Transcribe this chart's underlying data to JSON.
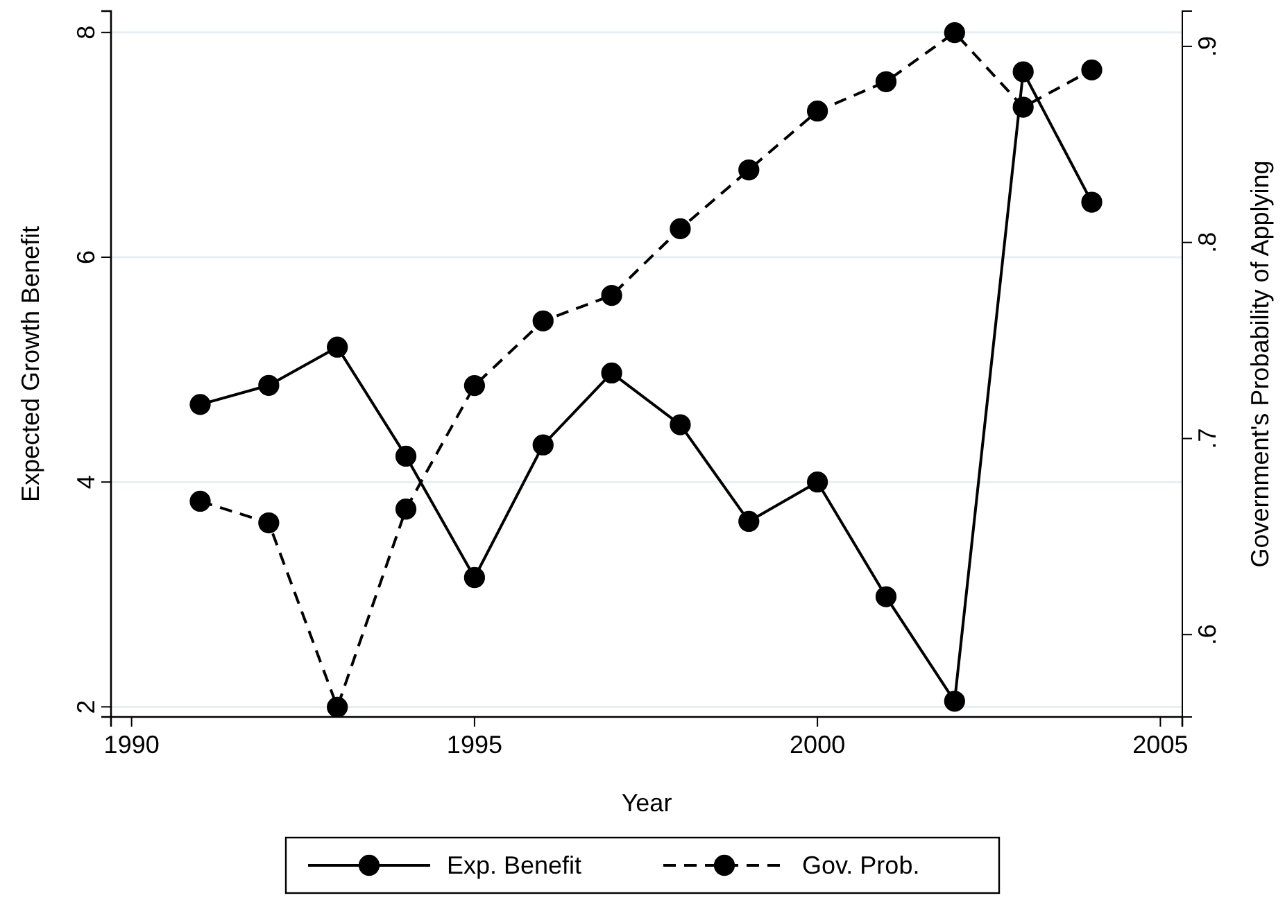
{
  "chart_data": {
    "type": "line",
    "xlabel": "Year",
    "ylabel": "Expected Growth Benefit",
    "y2label": "Government's Probability of Applying",
    "x": [
      1991,
      1992,
      1993,
      1994,
      1995,
      1996,
      1997,
      1998,
      1999,
      2000,
      2001,
      2002,
      2003,
      2004
    ],
    "series": [
      {
        "name": "Exp. Benefit",
        "color": "#000000",
        "line_style": "solid",
        "values": [
          4.69,
          4.86,
          5.2,
          4.23,
          3.15,
          4.33,
          4.97,
          4.51,
          3.65,
          4.0,
          2.98,
          2.05,
          7.65,
          6.49
        ]
      },
      {
        "name": "Gov. Prob.",
        "color": "#000000",
        "line_style": "dashed",
        "axis": "y2",
        "values": [
          0.668,
          0.657,
          0.563,
          0.664,
          0.727,
          0.76,
          0.773,
          0.807,
          0.837,
          0.867,
          0.882,
          0.907,
          0.869,
          0.888
        ]
      }
    ],
    "xlim": [
      1989.7,
      2005.32
    ],
    "xticks": [
      1990,
      1995,
      2000,
      2005
    ],
    "ylim": [
      1.91,
      8.19
    ],
    "yticks": [
      2,
      4,
      6,
      8
    ],
    "y2lim": [
      0.558,
      0.918
    ],
    "y2ticks": [
      {
        "value": 0.6,
        "label": ".6"
      },
      {
        "value": 0.7,
        "label": ".7"
      },
      {
        "value": 0.8,
        "label": ".8"
      },
      {
        "value": 0.9,
        "label": ".9"
      }
    ],
    "grid": "y",
    "legend": "bottom",
    "marker": "circle"
  }
}
